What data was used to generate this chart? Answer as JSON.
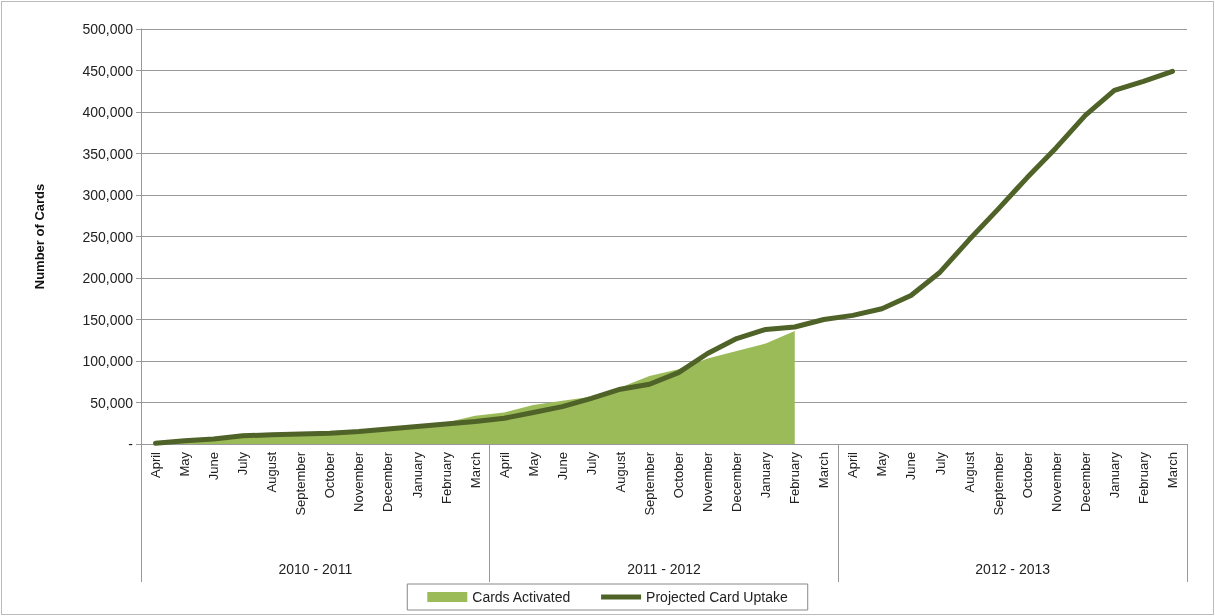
{
  "chart_data": {
    "type": "area",
    "ylabel": "Number of Cards",
    "categories": [
      "April",
      "May",
      "June",
      "July",
      "August",
      "September",
      "October",
      "November",
      "December",
      "January",
      "February",
      "March",
      "April",
      "May",
      "June",
      "July",
      "August",
      "September",
      "October",
      "November",
      "December",
      "January",
      "February",
      "March",
      "April",
      "May",
      "June",
      "July",
      "August",
      "September",
      "October",
      "November",
      "December",
      "January",
      "February",
      "March"
    ],
    "annotations": [
      "2010 - 2011",
      "2011 - 2012",
      "2012 - 2013"
    ],
    "series": [
      {
        "name": "Cards Activated",
        "color": "#9bbb59",
        "values": [
          1000,
          3000,
          5000,
          8000,
          9000,
          10000,
          12000,
          13000,
          17000,
          21000,
          26000,
          34000,
          38000,
          47000,
          52000,
          57000,
          68000,
          82000,
          90000,
          103000,
          112000,
          121000,
          136000,
          null,
          null,
          null,
          null,
          null,
          null,
          null,
          null,
          null,
          null,
          null,
          null,
          null
        ]
      },
      {
        "name": "Projected Card Uptake",
        "type": "line",
        "color": "#4f6228",
        "values": [
          1000,
          4000,
          6000,
          10000,
          11000,
          12000,
          13000,
          15000,
          18000,
          21000,
          24000,
          27000,
          31000,
          38000,
          45000,
          55000,
          66000,
          72000,
          86000,
          109000,
          127000,
          138000,
          141000,
          150000,
          155000,
          163000,
          179000,
          207000,
          246000,
          283000,
          321000,
          357000,
          396000,
          426000,
          437000,
          449000
        ]
      }
    ],
    "ylim": [
      0,
      500000
    ],
    "yticks": [
      {
        "value": 0,
        "label": "-"
      },
      {
        "value": 50000,
        "label": "50,000"
      },
      {
        "value": 100000,
        "label": "100,000"
      },
      {
        "value": 150000,
        "label": "150,000"
      },
      {
        "value": 200000,
        "label": "200,000"
      },
      {
        "value": 250000,
        "label": "250,000"
      },
      {
        "value": 300000,
        "label": "300,000"
      },
      {
        "value": 350000,
        "label": "350,000"
      },
      {
        "value": 400000,
        "label": "400,000"
      },
      {
        "value": 450000,
        "label": "450,000"
      },
      {
        "value": 500000,
        "label": "500,000"
      }
    ],
    "grid": "y",
    "legend": "bottom",
    "marker": "none",
    "line_style": "solid"
  }
}
